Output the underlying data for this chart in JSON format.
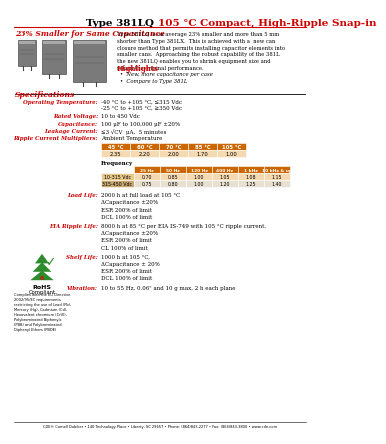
{
  "title_black": "Type 381LQ ",
  "title_red": "105 °C Compact, High-Ripple Snap-in",
  "subtitle": "23% Smaller for Same Capacitance",
  "desc_text": "Type 381LQ is on average 23% smaller and more than 5 mm\nshorter than Type 381LX.  This is achieved with a  new can\nclosure method that permits installing capacitor elements into\nsmaller cans.  Approaching the robust capability of the 381L\nthe new 381LQ enables you to shrink equipment size and\nretain the original performance.",
  "highlights_title": "Highlights",
  "highlights": [
    "New, more capacitance per case",
    "Compare to Type 381L"
  ],
  "spec_title": "Specifications",
  "specs_labels": [
    "Operating Temperature:",
    "Rated Voltage:",
    "Capacitance:",
    "Leakage Current:",
    "Ripple Current Multipliers:"
  ],
  "specs_values": [
    "-40 °C to +105 °C, ≤315 Vdc\n-25 °C to +105 °C, ≥350 Vdc",
    "10 to 450 Vdc",
    "100 μF to 100,000 μF ±20%",
    "≤3 √CV  μA,  5 minutes",
    "Ambient Temperature"
  ],
  "amb_temp_headers": [
    "45 °C",
    "60 °C",
    "70 °C",
    "85 °C",
    "105 °C"
  ],
  "amb_temp_values": [
    "2.35",
    "2.20",
    "2.00",
    "1.70",
    "1.00"
  ],
  "freq_label": "Frequency",
  "freq_headers": [
    "25 Hz",
    "50 Hz",
    "120 Hz",
    "400 Hz",
    "1 kHz",
    "10 kHz & up"
  ],
  "freq_row1_label": "10-315 Vdc",
  "freq_row1": [
    "0.70",
    "0.85",
    "1.00",
    "1.05",
    "1.08",
    "1.15"
  ],
  "freq_row2_label": "315-450 Vdc",
  "freq_row2": [
    "0.75",
    "0.80",
    "1.00",
    "1.20",
    "1.25",
    "1.40"
  ],
  "load_life_label": "Load Life:",
  "load_life_lines": [
    "2000 h at full load at 105 °C",
    "ΔCapacitance ±20%",
    "ESR 200% of limit",
    "DCL 100% of limit"
  ],
  "eia_label": "EIA Ripple Life:",
  "eia_lines": [
    "8000 h at 85 °C per EIA IS-749 with 105 °C ripple current.",
    "ΔCapacitance ±20%",
    "ESR 200% of limit",
    "CL 100% of limit"
  ],
  "shelf_label": "Shelf Life:",
  "shelf_lines": [
    "1000 h at 105 °C,",
    "ΔCapacitance ± 20%",
    "ESR 200% of limit",
    "DCL 100% of limit"
  ],
  "vib_label": "Vibration:",
  "vib_line": "10 to 55 Hz, 0.06\" and 10 g max, 2 h each plane",
  "rohs_small": "Complies with the EU Directive\n2002/95/EC requirements\nrestricting the use of Lead (Pb),\nMercury (Hg), Cadmium (Cd),\nHexavalent chromium (CrVI),\nPolybrominated Biphenyls\n(PBB) and Polybrominated\nDiphenyl Ethers (PBDE)",
  "footer": "CDE® Cornell Dubilier • 140 Technology Place • Liberty, SC 29657 • Phone: (864)843-2277 • Fax: (864)843-3800 • www.cde.com",
  "red_color": "#cc0000",
  "orange_color": "#cc6600",
  "orange_light": "#f5d9b0",
  "bg_color": "#ffffff"
}
